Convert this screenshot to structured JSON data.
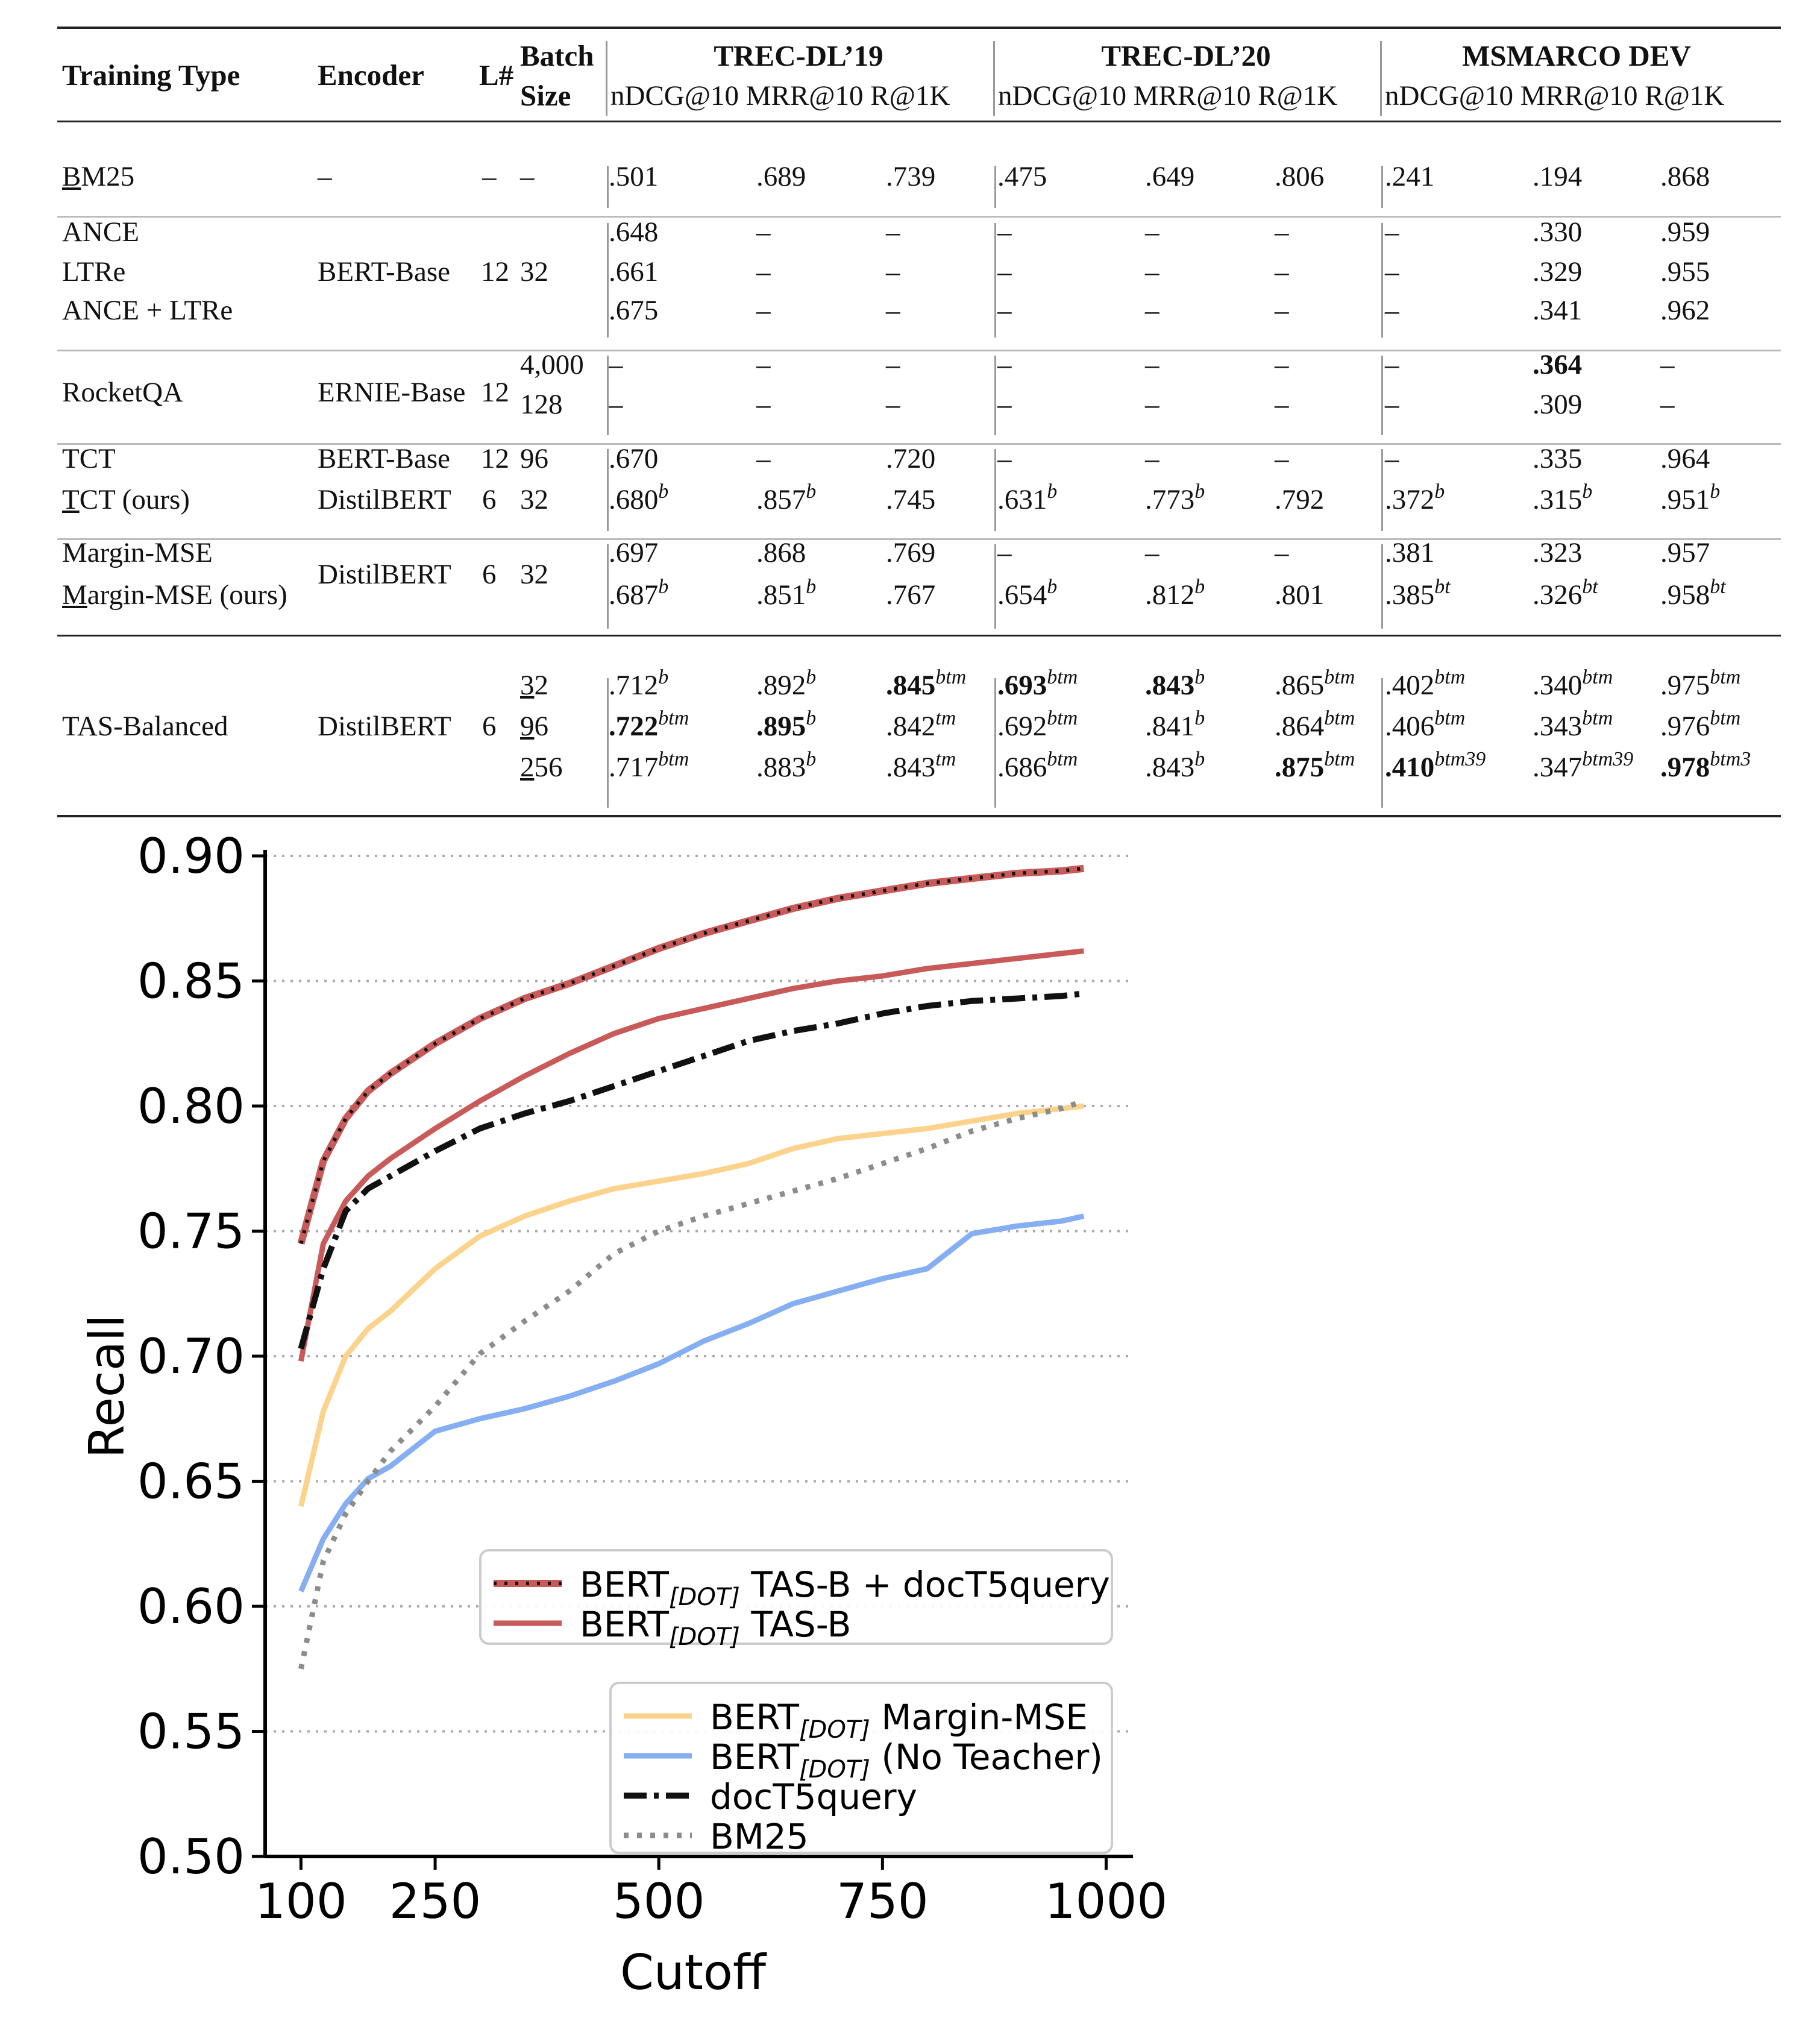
{
  "table": {
    "headers": {
      "training_type": "Training Type",
      "encoder": "Encoder",
      "layers": "L#",
      "batch_1": "Batch",
      "batch_2": "Size",
      "groups": [
        "TREC-DL’19",
        "TREC-DL’20",
        "MSMARCO DEV"
      ],
      "metrics": "nDCG@10 MRR@10 R@1K"
    },
    "rows": [
      {
        "type": "BM25",
        "encoder": "–",
        "l": "–",
        "batch": "–",
        "cells": [
          [
            ".501",
            ""
          ],
          [
            ".689",
            ""
          ],
          [
            ".739",
            ""
          ],
          [
            ".475",
            ""
          ],
          [
            ".649",
            ""
          ],
          [
            ".806",
            ""
          ],
          [
            ".241",
            ""
          ],
          [
            ".194",
            ""
          ],
          [
            ".868",
            ""
          ]
        ]
      },
      {
        "type": "ANCE",
        "encoder": "",
        "l": "",
        "batch": "",
        "cells": [
          [
            ".648",
            ""
          ],
          [
            "–",
            ""
          ],
          [
            "–",
            ""
          ],
          [
            "–",
            ""
          ],
          [
            "–",
            ""
          ],
          [
            "–",
            ""
          ],
          [
            "–",
            ""
          ],
          [
            ".330",
            ""
          ],
          [
            ".959",
            ""
          ]
        ]
      },
      {
        "type": "LTRe",
        "encoder": "BERT-Base",
        "l": "12",
        "batch": "32",
        "cells": [
          [
            ".661",
            ""
          ],
          [
            "–",
            ""
          ],
          [
            "–",
            ""
          ],
          [
            "–",
            ""
          ],
          [
            "–",
            ""
          ],
          [
            "–",
            ""
          ],
          [
            "–",
            ""
          ],
          [
            ".329",
            ""
          ],
          [
            ".955",
            ""
          ]
        ]
      },
      {
        "type": "ANCE + LTRe",
        "encoder": "",
        "l": "",
        "batch": "",
        "cells": [
          [
            ".675",
            ""
          ],
          [
            "–",
            ""
          ],
          [
            "–",
            ""
          ],
          [
            "–",
            ""
          ],
          [
            "–",
            ""
          ],
          [
            "–",
            ""
          ],
          [
            "–",
            ""
          ],
          [
            ".341",
            ""
          ],
          [
            ".962",
            ""
          ]
        ]
      },
      {
        "type": "",
        "encoder": "",
        "l": "",
        "batch": "4,000",
        "cells": [
          [
            "–",
            ""
          ],
          [
            "–",
            ""
          ],
          [
            "–",
            ""
          ],
          [
            "–",
            ""
          ],
          [
            "–",
            ""
          ],
          [
            "–",
            ""
          ],
          [
            "–",
            ""
          ],
          [
            ".364",
            ""
          ],
          [
            "–",
            ""
          ]
        ]
      },
      {
        "type": "RocketQA",
        "encoder": "ERNIE-Base",
        "l": "12",
        "batch": "128",
        "cells": [
          [
            "–",
            ""
          ],
          [
            "–",
            ""
          ],
          [
            "–",
            ""
          ],
          [
            "–",
            ""
          ],
          [
            "–",
            ""
          ],
          [
            "–",
            ""
          ],
          [
            "–",
            ""
          ],
          [
            ".309",
            ""
          ],
          [
            "–",
            ""
          ]
        ]
      },
      {
        "type": "TCT",
        "encoder": "BERT-Base",
        "l": "12",
        "batch": "96",
        "cells": [
          [
            ".670",
            ""
          ],
          [
            "–",
            ""
          ],
          [
            ".720",
            ""
          ],
          [
            "–",
            ""
          ],
          [
            "–",
            ""
          ],
          [
            "–",
            ""
          ],
          [
            "–",
            ""
          ],
          [
            ".335",
            ""
          ],
          [
            ".964",
            ""
          ]
        ]
      },
      {
        "type": "TCT (ours)",
        "encoder": "DistilBERT",
        "l": "6",
        "batch": "32",
        "cells": [
          [
            ".680",
            "b"
          ],
          [
            ".857",
            "b"
          ],
          [
            ".745",
            ""
          ],
          [
            ".631",
            "b"
          ],
          [
            ".773",
            "b"
          ],
          [
            ".792",
            ""
          ],
          [
            ".372",
            "b"
          ],
          [
            ".315",
            "b"
          ],
          [
            ".951",
            "b"
          ]
        ]
      },
      {
        "type": "Margin-MSE",
        "encoder": "",
        "l": "",
        "batch": "",
        "cells": [
          [
            ".697",
            ""
          ],
          [
            ".868",
            ""
          ],
          [
            ".769",
            ""
          ],
          [
            "–",
            ""
          ],
          [
            "–",
            ""
          ],
          [
            "–",
            ""
          ],
          [
            ".381",
            ""
          ],
          [
            ".323",
            ""
          ],
          [
            ".957",
            ""
          ]
        ]
      },
      {
        "type": "Margin-MSE (ours)",
        "encoder": "DistilBERT",
        "l": "6",
        "batch": "32",
        "cells": [
          [
            ".687",
            "b"
          ],
          [
            ".851",
            "b"
          ],
          [
            ".767",
            ""
          ],
          [
            ".654",
            "b"
          ],
          [
            ".812",
            "b"
          ],
          [
            ".801",
            ""
          ],
          [
            ".385",
            "bt"
          ],
          [
            ".326",
            "bt"
          ],
          [
            ".958",
            "bt"
          ]
        ]
      },
      {
        "type": "",
        "encoder": "",
        "l": "",
        "batch": "32",
        "cells": [
          [
            ".712",
            "b"
          ],
          [
            ".892",
            "b"
          ],
          [
            ".845",
            "btm"
          ],
          [
            ".693",
            "btm"
          ],
          [
            ".843",
            "b"
          ],
          [
            ".865",
            "btm"
          ],
          [
            ".402",
            "btm"
          ],
          [
            ".340",
            "btm"
          ],
          [
            ".975",
            "btm"
          ]
        ]
      },
      {
        "type": "TAS-Balanced",
        "encoder": "DistilBERT",
        "l": "6",
        "batch": "96",
        "cells": [
          [
            ".722",
            "btm"
          ],
          [
            ".895",
            "b"
          ],
          [
            ".842",
            "tm"
          ],
          [
            ".692",
            "btm"
          ],
          [
            ".841",
            "b"
          ],
          [
            ".864",
            "btm"
          ],
          [
            ".406",
            "btm"
          ],
          [
            ".343",
            "btm"
          ],
          [
            ".976",
            "btm"
          ]
        ]
      },
      {
        "type": "",
        "encoder": "",
        "l": "",
        "batch": "256",
        "cells": [
          [
            ".717",
            "btm"
          ],
          [
            ".883",
            "b"
          ],
          [
            ".843",
            "tm"
          ],
          [
            ".686",
            "btm"
          ],
          [
            ".843",
            "b"
          ],
          [
            ".875",
            "btm"
          ],
          [
            ".410",
            "btm39"
          ],
          [
            ".347",
            "btm39"
          ],
          [
            ".978",
            "btm3"
          ]
        ]
      }
    ]
  },
  "chart_data": {
    "type": "line",
    "title": "",
    "xlabel": "Cutoff",
    "ylabel": "Recall",
    "xlim": [
      100,
      1000
    ],
    "ylim": [
      0.5,
      0.9
    ],
    "xticks": [
      100,
      250,
      500,
      750,
      1000
    ],
    "yticks": [
      0.5,
      0.55,
      0.6,
      0.65,
      0.7,
      0.75,
      0.8,
      0.85,
      0.9
    ],
    "ytick_labels": [
      "0.50",
      "0.55",
      "0.60",
      "0.65",
      "0.70",
      "0.75",
      "0.80",
      "0.85",
      "0.90"
    ],
    "x": [
      100,
      125,
      150,
      175,
      200,
      250,
      300,
      350,
      400,
      450,
      500,
      550,
      600,
      650,
      700,
      750,
      800,
      850,
      900,
      950,
      975
    ],
    "series": [
      {
        "name": "TAS-B + docT5query",
        "legend_prefix": "BERT",
        "legend_sub": "[DOT]",
        "legend_suffix": " TAS-B + docT5query",
        "color": "#c85a5a",
        "style": "dotted-red",
        "values": [
          0.745,
          0.778,
          0.795,
          0.806,
          0.813,
          0.825,
          0.835,
          0.843,
          0.849,
          0.856,
          0.863,
          0.869,
          0.874,
          0.879,
          0.883,
          0.886,
          0.889,
          0.891,
          0.893,
          0.894,
          0.895
        ]
      },
      {
        "name": "TAS-B",
        "legend_prefix": "BERT",
        "legend_sub": "[DOT]",
        "legend_suffix": " TAS-B",
        "color": "#c85a5a",
        "style": "solid",
        "values": [
          0.698,
          0.745,
          0.762,
          0.772,
          0.779,
          0.791,
          0.802,
          0.812,
          0.821,
          0.829,
          0.835,
          0.839,
          0.843,
          0.847,
          0.85,
          0.852,
          0.855,
          0.857,
          0.859,
          0.861,
          0.862
        ]
      },
      {
        "name": "docT5query",
        "legend_prefix": "",
        "legend_sub": "",
        "legend_suffix": "docT5query",
        "color": "#111111",
        "style": "dashdot",
        "values": [
          0.703,
          0.735,
          0.758,
          0.767,
          0.772,
          0.782,
          0.791,
          0.797,
          0.802,
          0.808,
          0.814,
          0.82,
          0.826,
          0.83,
          0.833,
          0.837,
          0.84,
          0.842,
          0.843,
          0.844,
          0.845
        ]
      },
      {
        "name": "Margin-MSE",
        "legend_prefix": "BERT",
        "legend_sub": "[DOT]",
        "legend_suffix": " Margin-MSE",
        "color": "#fcd38c",
        "style": "solid",
        "values": [
          0.64,
          0.678,
          0.7,
          0.711,
          0.718,
          0.735,
          0.748,
          0.756,
          0.762,
          0.767,
          0.77,
          0.773,
          0.777,
          0.783,
          0.787,
          0.789,
          0.791,
          0.794,
          0.797,
          0.799,
          0.8
        ]
      },
      {
        "name": "No Teacher",
        "legend_prefix": "BERT",
        "legend_sub": "[DOT]",
        "legend_suffix": " (No Teacher)",
        "color": "#86aef2",
        "style": "solid",
        "values": [
          0.606,
          0.627,
          0.641,
          0.651,
          0.656,
          0.67,
          0.675,
          0.679,
          0.684,
          0.69,
          0.697,
          0.706,
          0.713,
          0.721,
          0.726,
          0.731,
          0.735,
          0.749,
          0.752,
          0.754,
          0.756
        ]
      },
      {
        "name": "BM25",
        "legend_prefix": "",
        "legend_sub": "",
        "legend_suffix": "BM25",
        "color": "#8c8c8c",
        "style": "dotted-gray",
        "values": [
          0.575,
          0.618,
          0.637,
          0.65,
          0.662,
          0.68,
          0.701,
          0.714,
          0.726,
          0.741,
          0.75,
          0.756,
          0.761,
          0.766,
          0.771,
          0.777,
          0.783,
          0.79,
          0.795,
          0.799,
          0.802
        ]
      }
    ],
    "legend_upper": "top-right",
    "legend_lower": "bottom-right"
  }
}
